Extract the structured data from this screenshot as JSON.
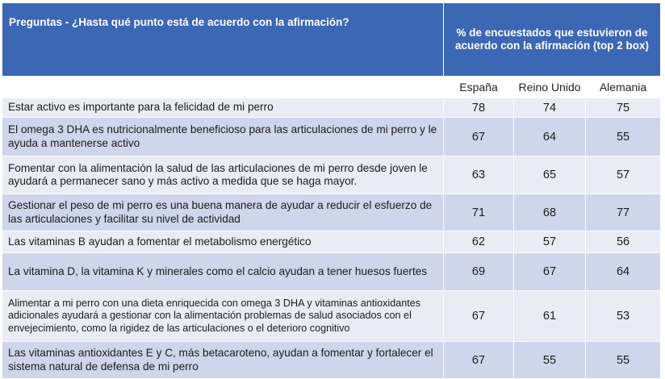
{
  "chart_data": {
    "type": "table",
    "header": {
      "question_label": "Preguntas - ¿Hasta qué punto está de acuerdo con la afirmación?",
      "percent_label": "% de encuestados que estuvieron de acuerdo con la afirmación (top 2 box)"
    },
    "columns": [
      "España",
      "Reino Unido",
      "Alemania"
    ],
    "rows": [
      {
        "question": "Estar activo es importante para la felicidad de mi perro",
        "values": [
          78,
          74,
          75
        ]
      },
      {
        "question": "El omega 3 DHA es nutricionalmente beneficioso para las articulaciones de mi perro y le ayuda a mantenerse activo",
        "values": [
          67,
          64,
          55
        ]
      },
      {
        "question": "Fomentar con la alimentación la salud de las articulaciones de mi perro desde joven le ayudará a permanecer sano y más activo a medida que se haga mayor.",
        "values": [
          63,
          65,
          57
        ]
      },
      {
        "question": "Gestionar el peso de mi perro es una buena manera de ayudar a reducir el esfuerzo de las articulaciones y facilitar su nivel de actividad",
        "values": [
          71,
          68,
          77
        ]
      },
      {
        "question": "Las vitaminas B ayudan a fomentar el metabolismo energético",
        "values": [
          62,
          57,
          56
        ]
      },
      {
        "question": "La vitamina D, la vitamina K y minerales como el calcio ayudan a tener huesos fuertes",
        "values": [
          69,
          67,
          64
        ]
      },
      {
        "question": "Alimentar a mi perro con una dieta enriquecida con omega 3 DHA y vitaminas antioxidantes adicionales ayudará a gestionar con la alimentación problemas de salud asociados con el envejecimiento, como la rigidez de las articulaciones o el deterioro cognitivo",
        "values": [
          67,
          61,
          53
        ]
      },
      {
        "question": "Las vitaminas antioxidantes E y C, más betacaroteno, ayudan a fomentar y fortalecer el sistema natural de defensa de mi perro",
        "values": [
          67,
          55,
          55
        ]
      }
    ]
  },
  "colors": {
    "header_bg": "#3b67b4",
    "row_light": "#e9ebf5",
    "row_dark": "#cfd5ea"
  }
}
